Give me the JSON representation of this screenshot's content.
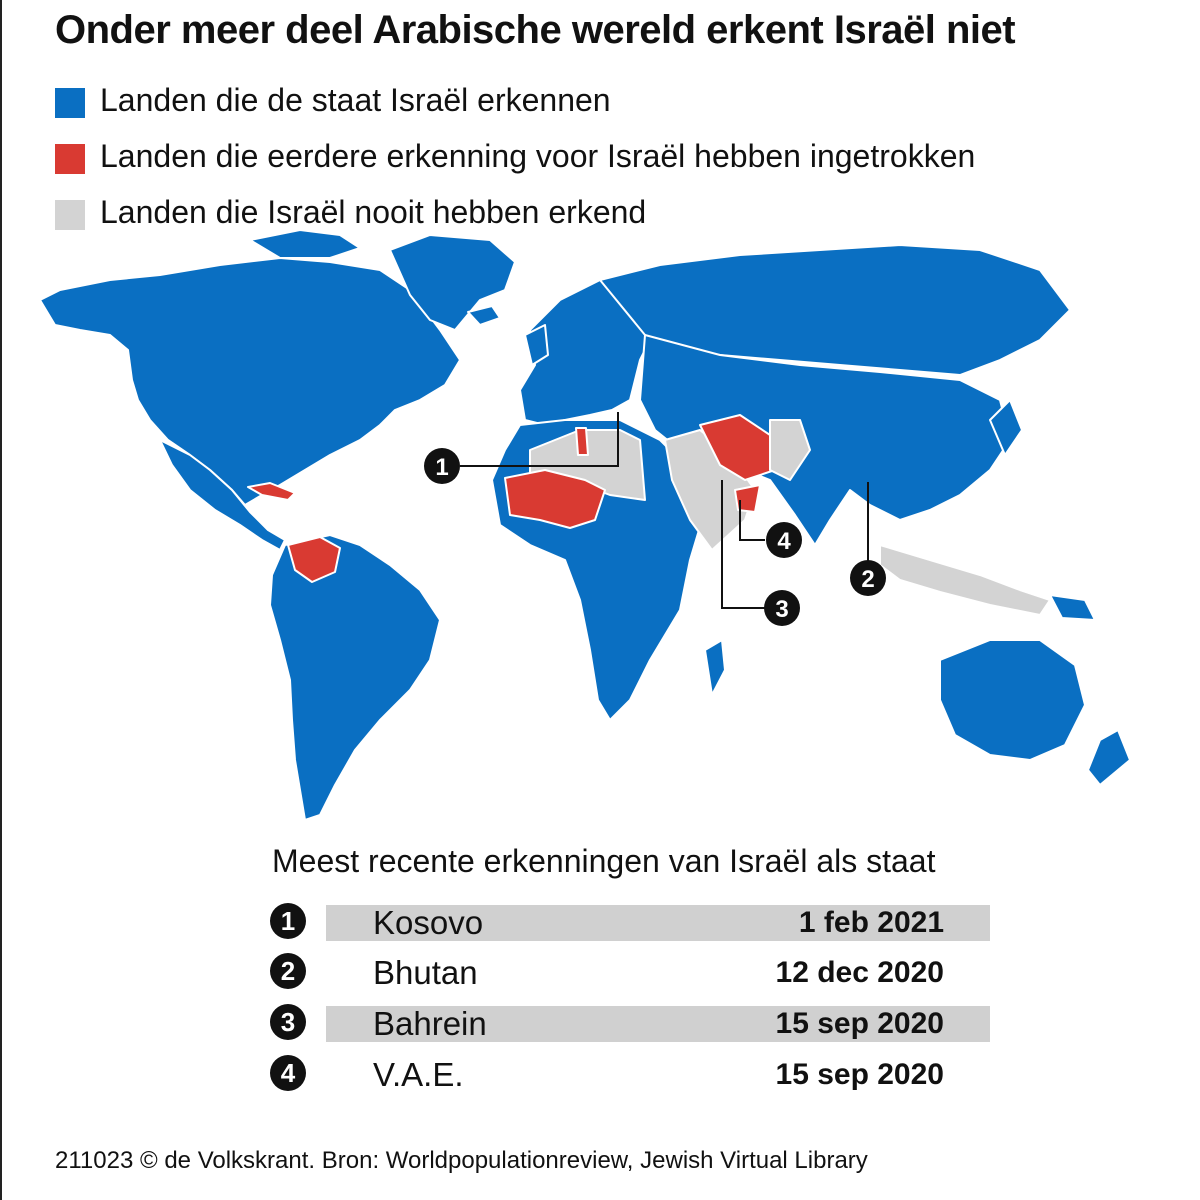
{
  "title": "Onder meer deel Arabische wereld erkent Israël niet",
  "colors": {
    "recognize": "#0a6fc2",
    "withdrawn": "#d93a32",
    "never": "#d3d3d3"
  },
  "legend": [
    {
      "label": "Landen die de staat Israël erkennen",
      "color": "#0a6fc2"
    },
    {
      "label": "Landen die eerdere erkenning voor Israël hebben ingetrokken",
      "color": "#d93a32"
    },
    {
      "label": "Landen die Israël nooit hebben erkend",
      "color": "#d3d3d3"
    }
  ],
  "markers": [
    "1",
    "2",
    "3",
    "4"
  ],
  "recent": {
    "title": "Meest recente erkenningen van Israël als staat",
    "rows": [
      {
        "num": "1",
        "country": "Kosovo",
        "date": "1 feb 2021"
      },
      {
        "num": "2",
        "country": "Bhutan",
        "date": "12 dec 2020"
      },
      {
        "num": "3",
        "country": "Bahrein",
        "date": "15 sep 2020"
      },
      {
        "num": "4",
        "country": "V.A.E.",
        "date": "15 sep 2020"
      }
    ]
  },
  "source": "211023 © de Volkskrant. Bron: Worldpopulationreview, Jewish Virtual Library"
}
